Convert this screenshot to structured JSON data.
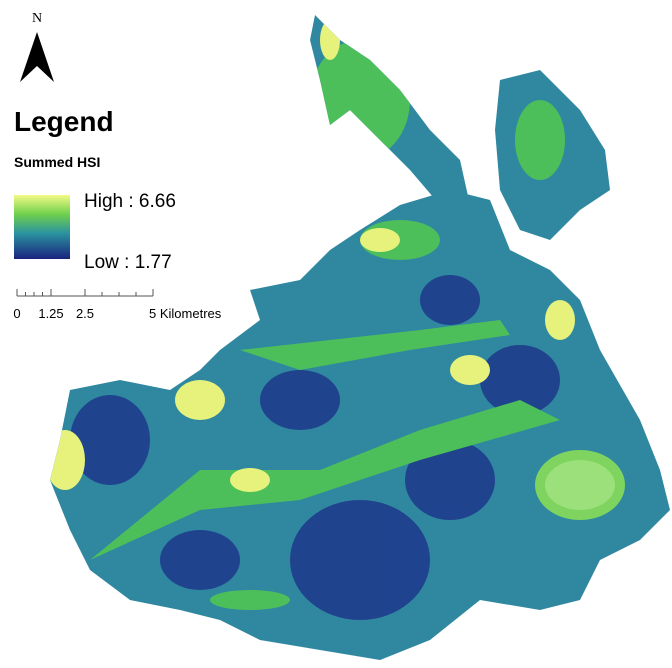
{
  "north_arrow": {
    "label": "N"
  },
  "legend": {
    "title": "Legend",
    "layer": "Summed HSI",
    "high": "High : 6.66",
    "low": "Low : 1.77"
  },
  "scale_bar": {
    "labels": [
      "0",
      "1.25",
      "2.5",
      "5 Kilometres"
    ]
  }
}
